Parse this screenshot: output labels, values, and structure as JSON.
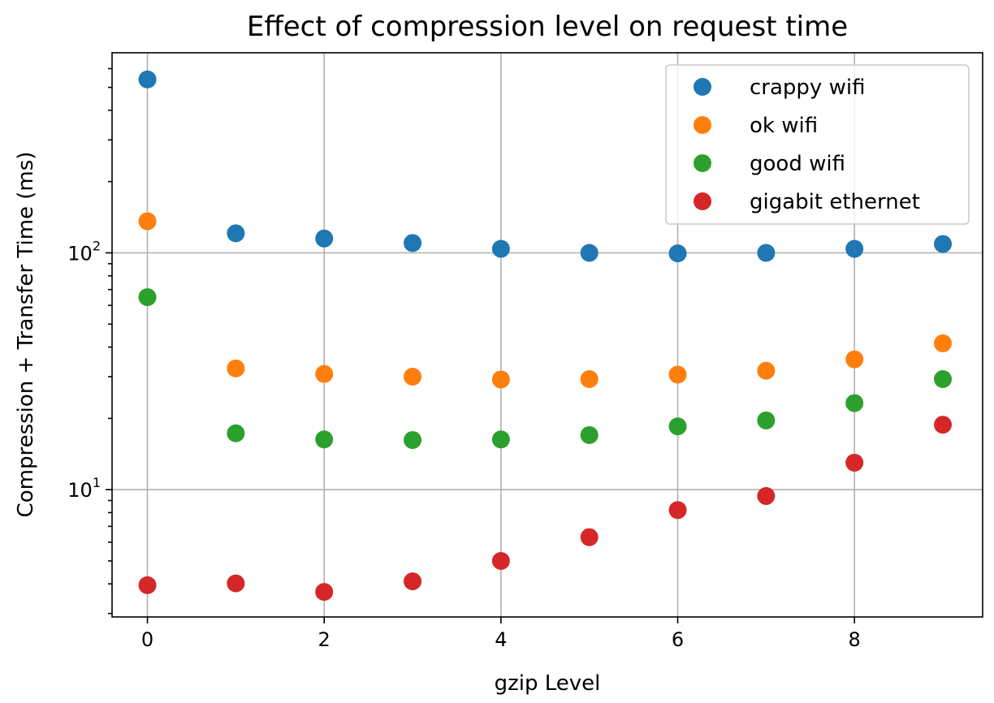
{
  "chart_data": {
    "type": "scatter",
    "title": "Effect of compression level on request time",
    "xlabel": "gzip Level",
    "ylabel": "Compression + Transfer Time (ms)",
    "xlim": [
      -0.4,
      9.45
    ],
    "ylim": [
      2.9,
      700
    ],
    "yscale": "log",
    "grid": true,
    "legend_position": "top-right",
    "x_ticks": [
      0,
      2,
      4,
      6,
      8
    ],
    "x_tick_labels": [
      "0",
      "2",
      "4",
      "6",
      "8"
    ],
    "y_major_ticks": [
      10,
      100
    ],
    "y_tick_labels": [
      {
        "base": "10",
        "exp": "1"
      },
      {
        "base": "10",
        "exp": "2"
      }
    ],
    "x": [
      0,
      1,
      2,
      3,
      4,
      5,
      6,
      7,
      8,
      9
    ],
    "series": [
      {
        "name": "crappy wifi",
        "color": "#1f77b4",
        "values": [
          540,
          121,
          115,
          110,
          104,
          100,
          99.5,
          100,
          104,
          109
        ]
      },
      {
        "name": "ok wifi",
        "color": "#ff7f0e",
        "values": [
          136,
          32.5,
          30.8,
          30.0,
          29.2,
          29.3,
          30.6,
          31.8,
          35.5,
          41.5
        ]
      },
      {
        "name": "good wifi",
        "color": "#2ca02c",
        "values": [
          65,
          17.3,
          16.3,
          16.2,
          16.3,
          17.0,
          18.5,
          19.6,
          23.2,
          29.3
        ]
      },
      {
        "name": "gigabit ethernet",
        "color": "#d62728",
        "values": [
          3.95,
          4.02,
          3.7,
          4.1,
          5.0,
          6.3,
          8.2,
          9.4,
          13.0,
          18.8
        ]
      }
    ]
  }
}
